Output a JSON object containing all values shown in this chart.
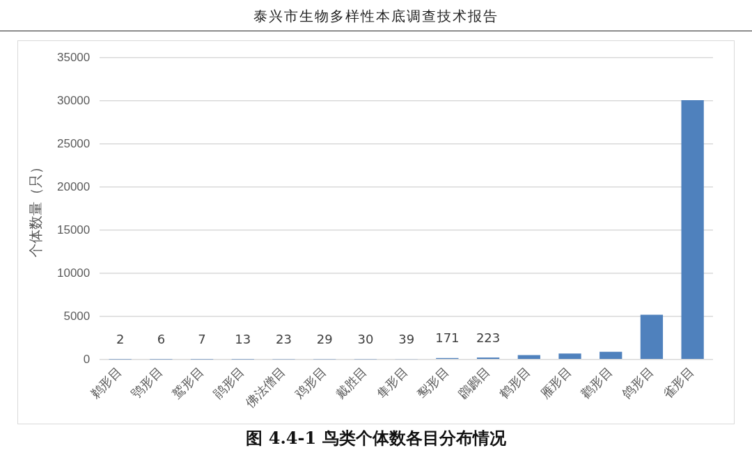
{
  "chart_data": {
    "type": "bar",
    "title": "图 4.4-1  鸟类个体数各目分布情况",
    "annotations": [
      "泰兴市生物多样性本底调查技术报告"
    ],
    "ylabel": "个体数量（只）",
    "categories": [
      "鹈形目",
      "鸮形目",
      "鹫形目",
      "鹃形目",
      "佛法僧目",
      "鸡形目",
      "戴胜目",
      "隼形目",
      "䴕形目",
      "鸊鷉目",
      "鹤形目",
      "雁形目",
      "鹳形目",
      "鸽形目",
      "雀形目"
    ],
    "values": [
      2,
      6,
      7,
      13,
      23,
      29,
      30,
      39,
      171,
      223,
      500,
      700,
      900,
      5200,
      30100
    ],
    "value_labels": [
      "2",
      "6",
      "7",
      "13",
      "23",
      "29",
      "30",
      "39",
      "171",
      "223",
      null,
      null,
      null,
      null,
      null
    ],
    "color": "#4f81bd",
    "ylim": [
      0,
      35000
    ],
    "yticks": [
      0,
      5000,
      10000,
      15000,
      20000,
      25000,
      30000,
      35000
    ],
    "grid": "y"
  }
}
